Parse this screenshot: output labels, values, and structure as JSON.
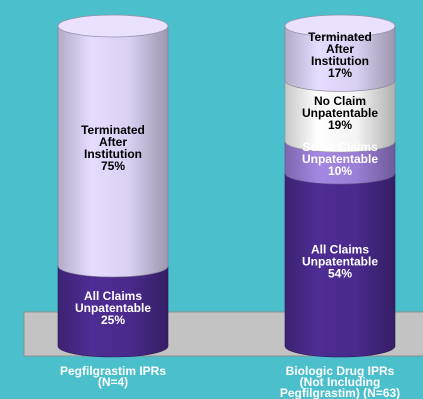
{
  "chart_data": {
    "type": "bar",
    "stacked": true,
    "style": "3d-cylinder",
    "categories": [
      [
        "Pegfilgrastim IPRs",
        "(N=4)"
      ],
      [
        "Biologic Drug IPRs",
        "(Not Including",
        "Pegfilgrastim) (N=63)"
      ]
    ],
    "series": [
      {
        "name": "All Claims Unpatentable",
        "label": [
          "All Claims",
          "Unpatentable"
        ],
        "values": [
          25,
          54
        ],
        "color": "#4a2a8c",
        "label_color": "#ffffff"
      },
      {
        "name": "Some Claims Unpatentable",
        "label": [
          "Some Claims",
          "Unpatentable"
        ],
        "values": [
          0,
          10
        ],
        "color": "#9a7fd6",
        "label_color": "#ffffff"
      },
      {
        "name": "No Claim Unpatentable",
        "label": [
          "No Claim",
          "Unpatentable"
        ],
        "values": [
          0,
          19
        ],
        "color": "#f4f4f4",
        "label_color": "#000000"
      },
      {
        "name": "Terminated After Institution",
        "label": [
          "Terminated",
          "After",
          "Institution"
        ],
        "values": [
          75,
          17
        ],
        "color": "#d9d0f2",
        "label_color": "#000000"
      }
    ],
    "value_suffix": "%",
    "ylim": [
      0,
      100
    ],
    "title": "",
    "xlabel": "",
    "ylabel": "",
    "grid": false,
    "legend": "none",
    "floor_color": "#c3c3c3",
    "background": "#4bbfcc"
  }
}
